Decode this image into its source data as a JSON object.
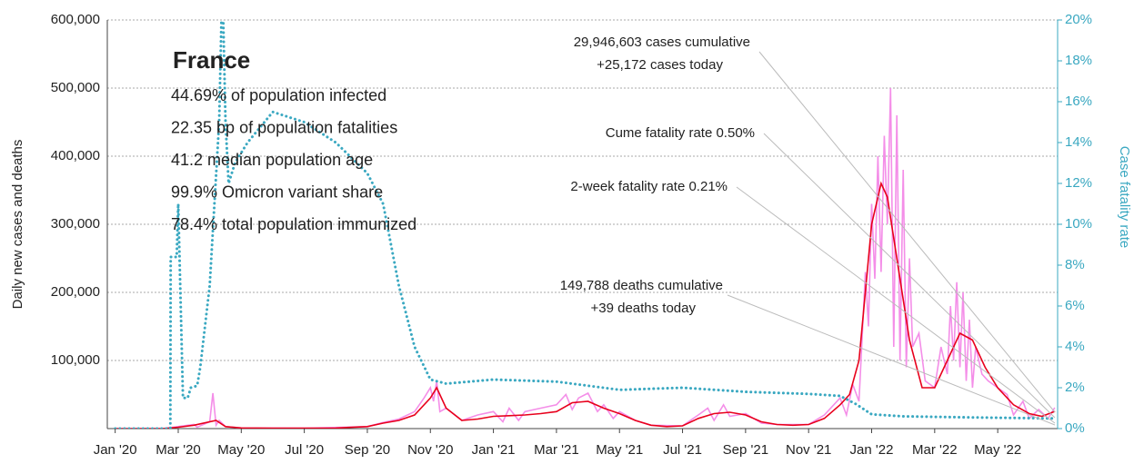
{
  "chart_data": {
    "type": "line",
    "y_label": "Daily new cases and deaths",
    "y2_label": "Case fatality rate",
    "info": {
      "title": "France",
      "lines": [
        "44.69% of population infected",
        "22.35 bp of population fatalities",
        "41.2 median population age",
        "99.9% Omicron variant share",
        "78.4% total population immunized"
      ]
    },
    "annotations": [
      {
        "lines": [
          "29,946,603 cases cumulative",
          "+25,172 cases today"
        ]
      },
      {
        "lines": [
          "Cume fatality rate 0.50%"
        ]
      },
      {
        "lines": [
          "2-week fatality rate 0.21%"
        ]
      },
      {
        "lines": [
          "149,788 deaths cumulative",
          "+39 deaths today"
        ]
      }
    ],
    "xlim": [
      -0.25,
      29.9
    ],
    "xticks": [
      {
        "value": 0,
        "label": "Jan '20"
      },
      {
        "value": 2,
        "label": "Mar '20"
      },
      {
        "value": 4,
        "label": "May '20"
      },
      {
        "value": 6,
        "label": "Jul '20"
      },
      {
        "value": 8,
        "label": "Sep '20"
      },
      {
        "value": 10,
        "label": "Nov '20"
      },
      {
        "value": 12,
        "label": "Jan '21"
      },
      {
        "value": 14,
        "label": "Mar '21"
      },
      {
        "value": 16,
        "label": "May '21"
      },
      {
        "value": 18,
        "label": "Jul '21"
      },
      {
        "value": 20,
        "label": "Sep '21"
      },
      {
        "value": 22,
        "label": "Nov '21"
      },
      {
        "value": 24,
        "label": "Jan '22"
      },
      {
        "value": 26,
        "label": "Mar '22"
      },
      {
        "value": 28,
        "label": "May '22"
      }
    ],
    "ylim": [
      0,
      600000
    ],
    "yticks": [
      {
        "value": 100000,
        "label": "100,000"
      },
      {
        "value": 200000,
        "label": "200,000"
      },
      {
        "value": 300000,
        "label": "300,000"
      },
      {
        "value": 400000,
        "label": "400,000"
      },
      {
        "value": 500000,
        "label": "500,000"
      },
      {
        "value": 600000,
        "label": "600,000"
      }
    ],
    "y2lim": [
      0,
      20
    ],
    "y2ticks": [
      {
        "value": 0,
        "label": "0%"
      },
      {
        "value": 2,
        "label": "2%"
      },
      {
        "value": 4,
        "label": "4%"
      },
      {
        "value": 6,
        "label": "6%"
      },
      {
        "value": 8,
        "label": "8%"
      },
      {
        "value": 10,
        "label": "10%"
      },
      {
        "value": 12,
        "label": "12%"
      },
      {
        "value": 14,
        "label": "14%"
      },
      {
        "value": 16,
        "label": "16%"
      },
      {
        "value": 18,
        "label": "18%"
      },
      {
        "value": 20,
        "label": "20%"
      }
    ],
    "grid": true,
    "series": [
      {
        "color": "#f48ee8",
        "style": "solid",
        "x": [
          0,
          1.5,
          2.5,
          2.6,
          3.0,
          3.1,
          3.2,
          3.3,
          3.5,
          4,
          6,
          8,
          8.5,
          9,
          9.5,
          9.8,
          10.0,
          10.1,
          10.2,
          10.3,
          10.5,
          11,
          11.5,
          12,
          12.3,
          12.5,
          12.8,
          13,
          13.5,
          14,
          14.3,
          14.5,
          14.7,
          15,
          15.3,
          15.5,
          15.8,
          16,
          16.5,
          17,
          18,
          18.5,
          18.8,
          19,
          19.3,
          19.5,
          20,
          20.5,
          21,
          22,
          22.5,
          23,
          23.2,
          23.4,
          23.6,
          23.8,
          23.9,
          24.0,
          24.1,
          24.2,
          24.3,
          24.4,
          24.5,
          24.6,
          24.7,
          24.8,
          24.9,
          25.0,
          25.1,
          25.2,
          25.3,
          25.5,
          25.7,
          26,
          26.2,
          26.4,
          26.5,
          26.6,
          26.7,
          26.8,
          26.9,
          27.0,
          27.1,
          27.2,
          27.3,
          27.5,
          27.7,
          28,
          28.3,
          28.5,
          28.8,
          29,
          29.3,
          29.6,
          29.8
        ],
        "values": [
          0,
          0,
          6000,
          2000,
          10000,
          52000,
          5000,
          12000,
          3000,
          1000,
          500,
          3000,
          9000,
          14000,
          25000,
          45000,
          60000,
          40000,
          70000,
          25000,
          30000,
          12000,
          20000,
          25000,
          10000,
          30000,
          12000,
          25000,
          30000,
          35000,
          50000,
          28000,
          45000,
          52000,
          25000,
          35000,
          15000,
          25000,
          12000,
          5000,
          4000,
          20000,
          30000,
          12000,
          35000,
          18000,
          22000,
          8000,
          6000,
          6000,
          20000,
          45000,
          20000,
          65000,
          40000,
          230000,
          150000,
          330000,
          220000,
          400000,
          230000,
          430000,
          300000,
          500000,
          120000,
          460000,
          100000,
          380000,
          90000,
          250000,
          120000,
          140000,
          70000,
          60000,
          120000,
          80000,
          180000,
          100000,
          215000,
          90000,
          200000,
          70000,
          160000,
          60000,
          120000,
          80000,
          70000,
          60000,
          50000,
          20000,
          40000,
          15000,
          28000,
          15000,
          30000
        ]
      },
      {
        "color": "#e8001c",
        "style": "solid",
        "x": [
          0,
          1.5,
          2,
          2.5,
          3.2,
          3.5,
          4,
          5,
          6,
          7,
          8,
          8.5,
          9,
          9.5,
          10,
          10.2,
          10.5,
          11,
          11.5,
          12,
          12.5,
          13,
          13.5,
          14,
          14.5,
          15,
          15.5,
          16,
          16.5,
          17,
          17.5,
          18,
          18.5,
          19,
          19.5,
          20,
          20.5,
          21,
          21.5,
          22,
          22.5,
          23,
          23.3,
          23.6,
          24,
          24.3,
          24.5,
          24.8,
          25.2,
          25.6,
          26,
          26.4,
          26.8,
          27.2,
          27.6,
          28,
          28.5,
          29,
          29.4,
          29.8
        ],
        "values": [
          0,
          0,
          2000,
          5000,
          12000,
          3000,
          1000,
          500,
          500,
          800,
          3000,
          8000,
          12000,
          20000,
          45000,
          60000,
          30000,
          12000,
          14000,
          18000,
          19000,
          20000,
          22000,
          25000,
          38000,
          40000,
          30000,
          22000,
          12000,
          5000,
          3000,
          4000,
          15000,
          22000,
          24000,
          20000,
          10000,
          6000,
          5000,
          6000,
          15000,
          35000,
          50000,
          100000,
          300000,
          360000,
          340000,
          250000,
          130000,
          60000,
          60000,
          100000,
          140000,
          130000,
          90000,
          60000,
          35000,
          22000,
          18000,
          25000
        ]
      },
      {
        "color": "#3aa8c1",
        "style": "dotted",
        "axis": "y2",
        "x": [
          0,
          1.75,
          1.76,
          1.95,
          2.0,
          2.15,
          2.3,
          2.4,
          2.6,
          2.7,
          3.0,
          3.3,
          3.4,
          3.5,
          3.6,
          3.8,
          4.2,
          5,
          6,
          7,
          8,
          8.5,
          9,
          9.5,
          10,
          10.5,
          12,
          14,
          16,
          18,
          20,
          22,
          23,
          23.5,
          24,
          25,
          27,
          29.8
        ],
        "values": [
          0,
          0,
          8.4,
          8.4,
          11,
          1.5,
          1.5,
          2,
          2.1,
          3,
          7,
          15,
          22,
          15,
          12,
          13,
          14,
          15.5,
          15,
          14,
          12.5,
          11,
          7,
          4,
          2.4,
          2.2,
          2.4,
          2.3,
          1.9,
          2.0,
          1.8,
          1.7,
          1.6,
          1.2,
          0.7,
          0.6,
          0.55,
          0.5
        ]
      }
    ]
  }
}
